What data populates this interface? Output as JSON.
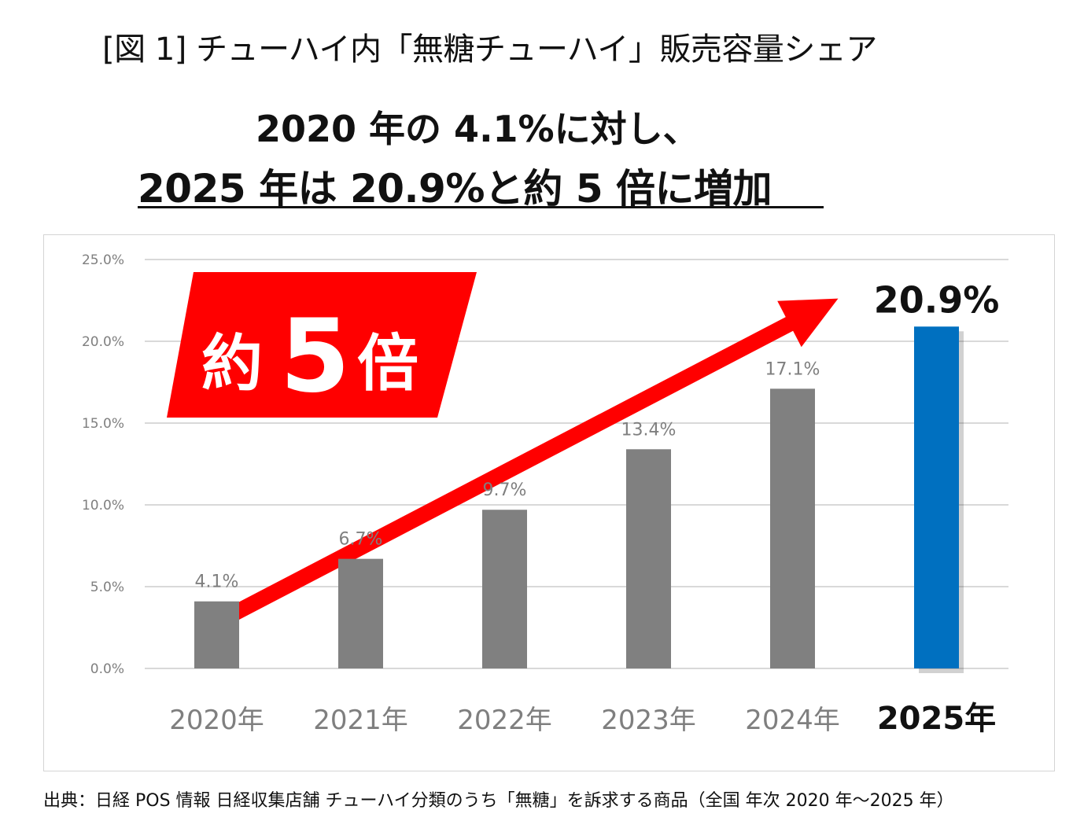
{
  "figure": {
    "title": "[図 1]  チューハイ内「無糖チューハイ」販売容量シェア",
    "headline_line1": "2020 年の 4.1%に対し、",
    "headline_line2": "2025 年は 20.9%と約 5 倍に増加",
    "source": "出典：日経 POS 情報  日経収集店舗  チューハイ分類のうち「無糖」を訴求する商品（全国  年次  2020 年～2025 年）"
  },
  "chart_data": {
    "type": "bar",
    "categories": [
      "2020年",
      "2021年",
      "2022年",
      "2023年",
      "2024年",
      "2025年"
    ],
    "values": [
      4.1,
      6.7,
      9.7,
      13.4,
      17.1,
      20.9
    ],
    "data_labels": [
      "4.1%",
      "6.7%",
      "9.7%",
      "13.4%",
      "17.1%",
      "20.9%"
    ],
    "yticks": [
      0,
      5,
      10,
      15,
      20,
      25
    ],
    "ytick_labels": [
      "0.0%",
      "5.0%",
      "10.0%",
      "15.0%",
      "20.0%",
      "25.0%"
    ],
    "ylim": [
      0,
      25
    ],
    "grid": true,
    "highlight_index": 5,
    "colors": {
      "bar": "#808080",
      "highlight": "#0070c0",
      "arrow": "#ff0000",
      "grid": "#d9d9d9",
      "axis_text": "#595959"
    },
    "callout": {
      "pre": "約",
      "number": "5",
      "post": "倍"
    },
    "arrow": {
      "from_value": 3.0,
      "to_value": 23.0
    },
    "title": "",
    "xlabel": "",
    "ylabel": ""
  }
}
